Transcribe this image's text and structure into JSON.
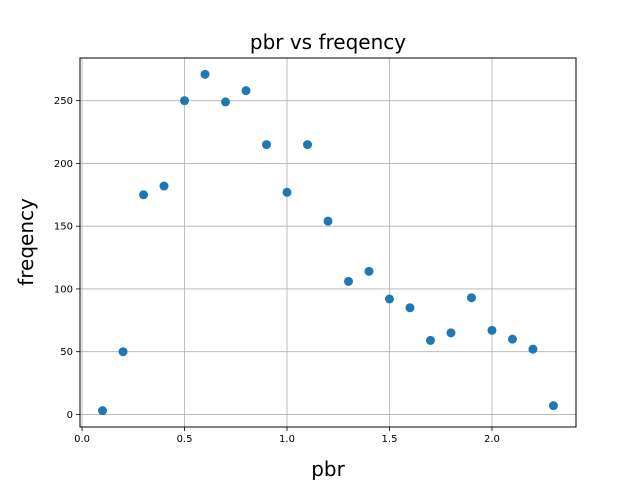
{
  "chart_data": {
    "type": "scatter",
    "title": "pbr vs freqency",
    "xlabel": "pbr",
    "ylabel": "freqency",
    "xlim": [
      -0.01,
      2.41
    ],
    "ylim": [
      -10,
      284
    ],
    "xticks": [
      0.0,
      0.5,
      1.0,
      1.5,
      2.0
    ],
    "xtick_labels": [
      "0.0",
      "0.5",
      "1.0",
      "1.5",
      "2.0"
    ],
    "yticks": [
      0,
      50,
      100,
      150,
      200,
      250
    ],
    "ytick_labels": [
      "0",
      "50",
      "100",
      "150",
      "200",
      "250"
    ],
    "grid": true,
    "marker_color": "#1f77b4",
    "series": [
      {
        "x": [
          0.1,
          0.2,
          0.3,
          0.4,
          0.5,
          0.6,
          0.7,
          0.8,
          0.9,
          1.0,
          1.1,
          1.2,
          1.3,
          1.4,
          1.5,
          1.6,
          1.7,
          1.8,
          1.9,
          2.0,
          2.1,
          2.2,
          2.3
        ],
        "y": [
          3,
          50,
          175,
          182,
          250,
          271,
          249,
          258,
          215,
          177,
          215,
          154,
          106,
          114,
          92,
          85,
          59,
          65,
          93,
          67,
          60,
          52,
          7
        ]
      }
    ]
  }
}
